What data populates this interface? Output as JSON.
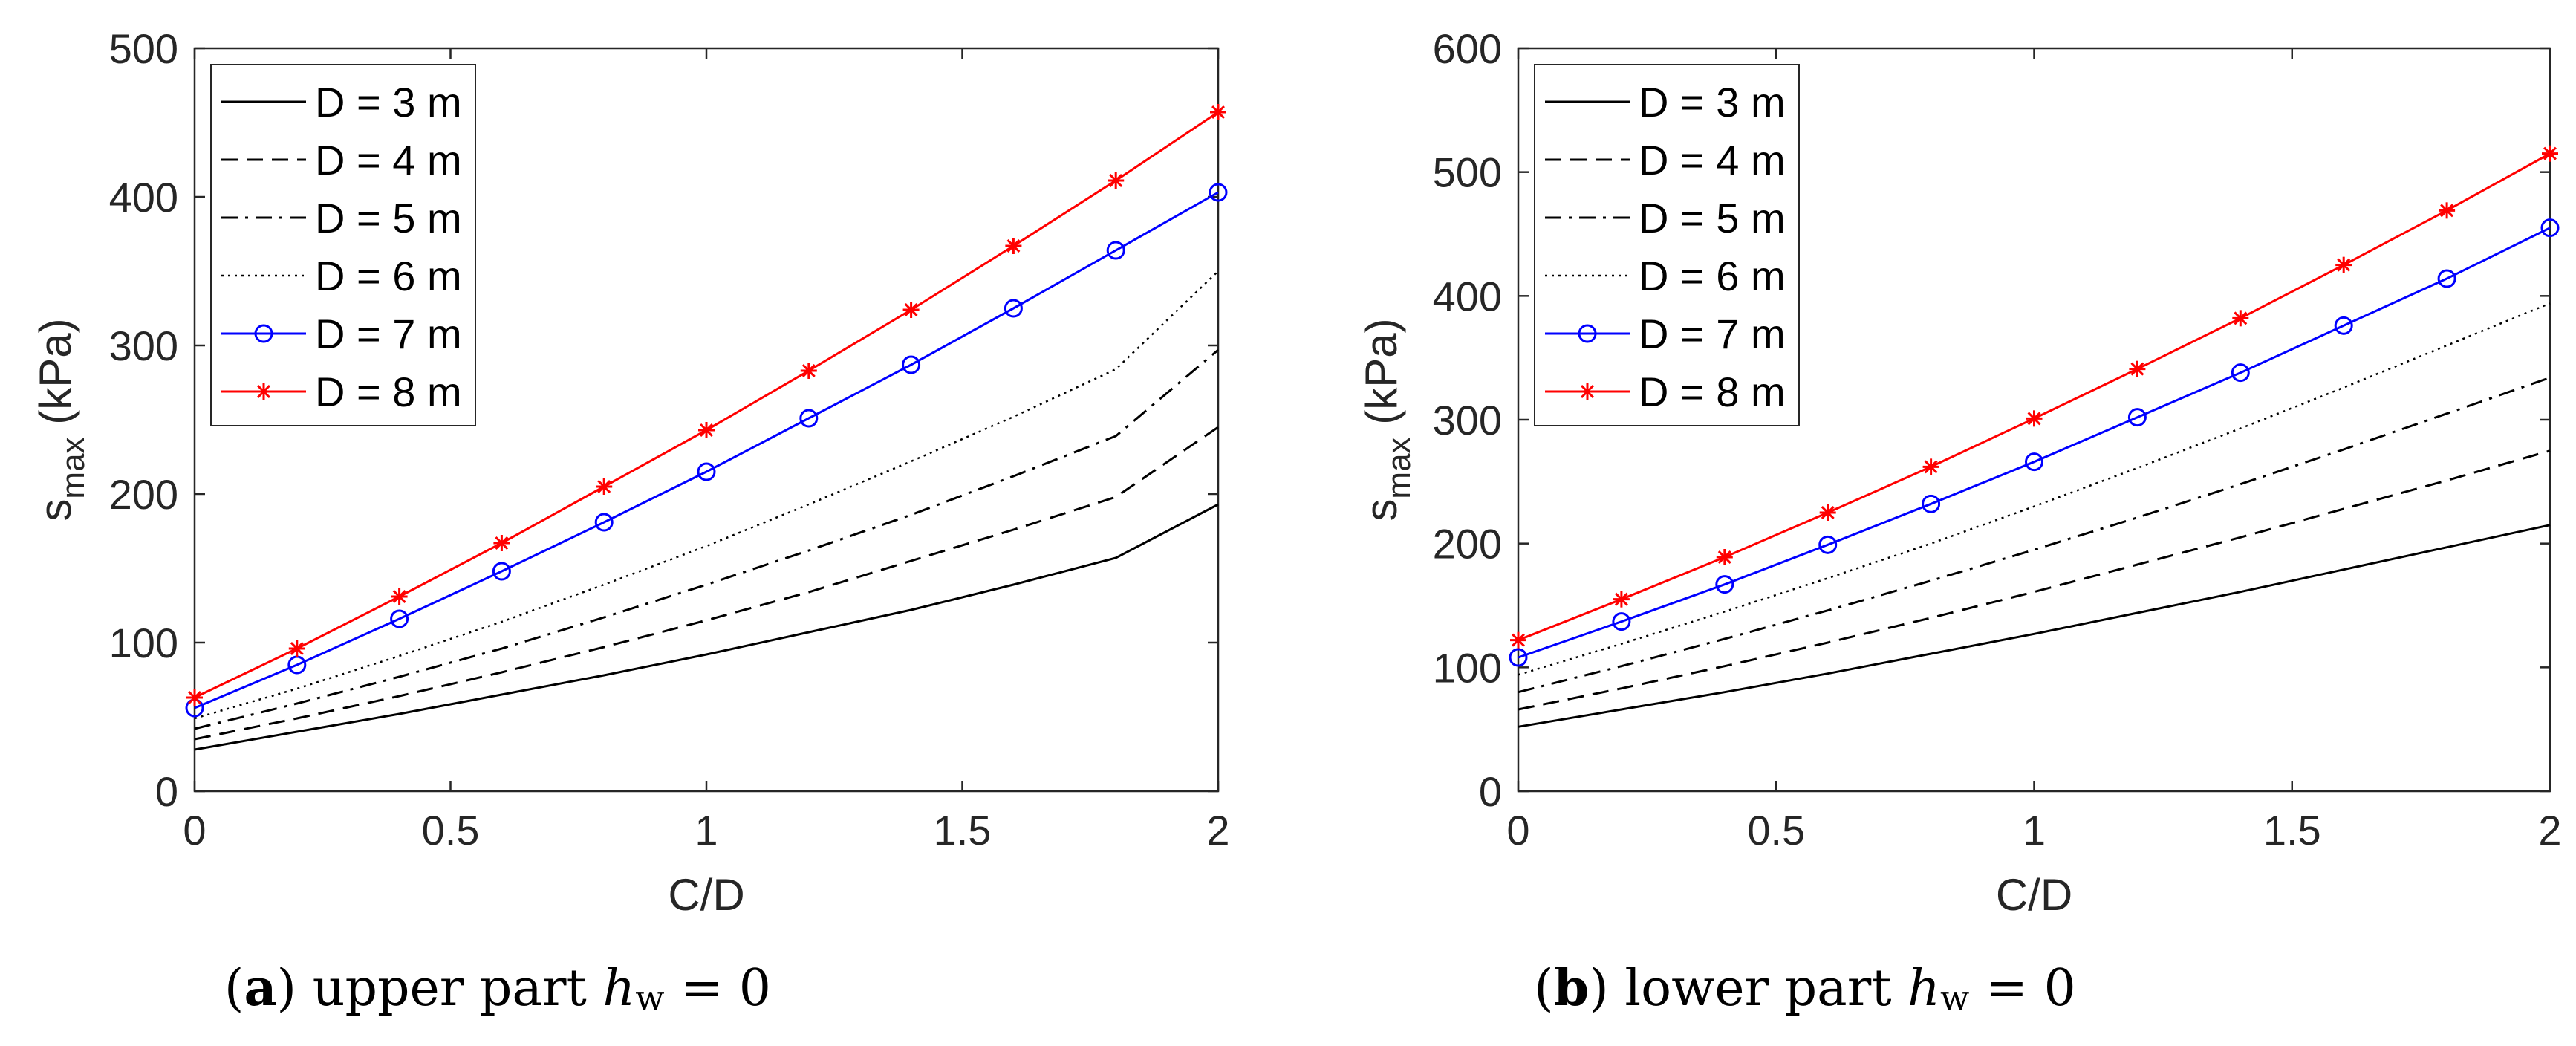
{
  "chart_data": [
    {
      "type": "line",
      "xlabel": "C/D",
      "ylabel": "s",
      "ylabel_sub": "max",
      "ylabel_unit": " (kPa)",
      "xlim": [
        0,
        2
      ],
      "ylim": [
        0,
        500
      ],
      "xticks": [
        0,
        0.5,
        1,
        1.5,
        2
      ],
      "xtick_labels": [
        "0",
        "0.5",
        "1",
        "1.5",
        "2"
      ],
      "yticks": [
        0,
        100,
        200,
        300,
        400,
        500
      ],
      "ytick_labels": [
        "0",
        "100",
        "200",
        "300",
        "400",
        "500"
      ],
      "grid": false,
      "legend_position": "top-left",
      "x": [
        0,
        0.2,
        0.4,
        0.6,
        0.8,
        1.0,
        1.2,
        1.4,
        1.6,
        1.8,
        2.0
      ],
      "series": [
        {
          "name": "D = 3 m",
          "style": "solid",
          "color": "#000000",
          "marker": "none",
          "values": [
            28,
            40,
            52,
            65,
            78,
            92,
            107,
            122,
            139,
            157,
            193
          ]
        },
        {
          "name": "D = 4 m",
          "style": "dashed",
          "color": "#000000",
          "marker": "none",
          "values": [
            35,
            49,
            64,
            80,
            97,
            115,
            134,
            155,
            176,
            198,
            245
          ]
        },
        {
          "name": "D = 5 m",
          "style": "dashdot",
          "color": "#000000",
          "marker": "none",
          "values": [
            42,
            59,
            77,
            96,
            117,
            139,
            162,
            186,
            212,
            239,
            297
          ]
        },
        {
          "name": "D = 6 m",
          "style": "dotted",
          "color": "#000000",
          "marker": "none",
          "values": [
            49,
            69,
            91,
            114,
            139,
            165,
            193,
            222,
            252,
            284,
            350
          ]
        },
        {
          "name": "D = 7 m",
          "style": "solid",
          "color": "#0000ff",
          "marker": "circle",
          "values": [
            56,
            85,
            116,
            148,
            181,
            215,
            251,
            287,
            325,
            364,
            403
          ]
        },
        {
          "name": "D = 8 m",
          "style": "solid",
          "color": "#ff0000",
          "marker": "star",
          "values": [
            63,
            96,
            131,
            167,
            205,
            243,
            283,
            324,
            367,
            411,
            457
          ]
        }
      ]
    },
    {
      "type": "line",
      "xlabel": "C/D",
      "ylabel": "s",
      "ylabel_sub": "max",
      "ylabel_unit": " (kPa)",
      "xlim": [
        0,
        2
      ],
      "ylim": [
        0,
        600
      ],
      "xticks": [
        0,
        0.5,
        1,
        1.5,
        2
      ],
      "xtick_labels": [
        "0",
        "0.5",
        "1",
        "1.5",
        "2"
      ],
      "yticks": [
        0,
        100,
        200,
        300,
        400,
        500,
        600
      ],
      "ytick_labels": [
        "0",
        "100",
        "200",
        "300",
        "400",
        "500",
        "600"
      ],
      "grid": false,
      "legend_position": "top-left",
      "x": [
        0,
        0.2,
        0.4,
        0.6,
        0.8,
        1.0,
        1.2,
        1.4,
        1.6,
        1.8,
        2.0
      ],
      "series": [
        {
          "name": "D = 3 m",
          "style": "solid",
          "color": "#000000",
          "marker": "none",
          "values": [
            52,
            66,
            80,
            95,
            111,
            127,
            144,
            161,
            179,
            197,
            215
          ]
        },
        {
          "name": "D = 4 m",
          "style": "dashed",
          "color": "#000000",
          "marker": "none",
          "values": [
            66,
            83,
            101,
            120,
            140,
            161,
            183,
            205,
            228,
            251,
            275
          ]
        },
        {
          "name": "D = 5 m",
          "style": "dashdot",
          "color": "#000000",
          "marker": "none",
          "values": [
            80,
            101,
            123,
            146,
            170,
            195,
            221,
            248,
            276,
            305,
            334
          ]
        },
        {
          "name": "D = 6 m",
          "style": "dotted",
          "color": "#000000",
          "marker": "none",
          "values": [
            94,
            119,
            145,
            172,
            200,
            230,
            261,
            293,
            326,
            360,
            394
          ]
        },
        {
          "name": "D = 7 m",
          "style": "solid",
          "color": "#0000ff",
          "marker": "circle",
          "values": [
            108,
            137,
            167,
            199,
            232,
            266,
            302,
            338,
            376,
            414,
            455
          ]
        },
        {
          "name": "D = 8 m",
          "style": "solid",
          "color": "#ff0000",
          "marker": "star",
          "values": [
            122,
            155,
            189,
            225,
            262,
            301,
            341,
            382,
            425,
            469,
            515
          ]
        }
      ]
    }
  ],
  "captions": [
    {
      "letter": "a",
      "text": " upper part ",
      "var": "h",
      "sub": "w",
      "rest": " = 0"
    },
    {
      "letter": "b",
      "text": " lower part ",
      "var": "h",
      "sub": "w",
      "rest": " = 0"
    }
  ]
}
